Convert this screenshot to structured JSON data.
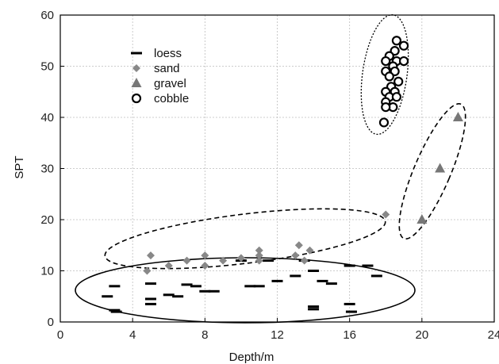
{
  "chart_data": {
    "type": "scatter",
    "title": "",
    "xlabel": "Depth/m",
    "ylabel": "SPT",
    "xlim": [
      0,
      24
    ],
    "ylim": [
      0,
      60
    ],
    "xticks": [
      "0",
      "4",
      "8",
      "12",
      "16",
      "20",
      "24"
    ],
    "yticks": [
      "0",
      "10",
      "20",
      "30",
      "40",
      "50",
      "60"
    ],
    "grid": true,
    "legend": "top-left",
    "series": [
      {
        "name": "loess",
        "marker": "dash",
        "color": "#000000",
        "points": [
          [
            2.6,
            5
          ],
          [
            3.0,
            7
          ],
          [
            3.0,
            2.3
          ],
          [
            3.1,
            2
          ],
          [
            5.0,
            7.5
          ],
          [
            5.0,
            4.5
          ],
          [
            5.0,
            3.5
          ],
          [
            6.0,
            5.3
          ],
          [
            6.5,
            5
          ],
          [
            7.0,
            7.3
          ],
          [
            7.5,
            7
          ],
          [
            8.0,
            6
          ],
          [
            8.5,
            6
          ],
          [
            10.0,
            12
          ],
          [
            10.5,
            7
          ],
          [
            11.0,
            7
          ],
          [
            11.5,
            12
          ],
          [
            12.0,
            8
          ],
          [
            13.0,
            9
          ],
          [
            13.5,
            12
          ],
          [
            14.0,
            10
          ],
          [
            14.0,
            3
          ],
          [
            14.0,
            2.5
          ],
          [
            14.5,
            8
          ],
          [
            15.0,
            7.5
          ],
          [
            16.0,
            11
          ],
          [
            16.0,
            3.5
          ],
          [
            16.1,
            2
          ],
          [
            17.0,
            11
          ],
          [
            17.5,
            9
          ]
        ]
      },
      {
        "name": "sand",
        "marker": "diamond",
        "color": "#888888",
        "points": [
          [
            4.8,
            10
          ],
          [
            5.0,
            13
          ],
          [
            6.0,
            11
          ],
          [
            7.0,
            12
          ],
          [
            8.0,
            13
          ],
          [
            8.0,
            11
          ],
          [
            9.0,
            12
          ],
          [
            10.0,
            12.5
          ],
          [
            11.0,
            14
          ],
          [
            11.0,
            13
          ],
          [
            11.0,
            12
          ],
          [
            13.0,
            13
          ],
          [
            13.2,
            15
          ],
          [
            13.5,
            12
          ],
          [
            13.8,
            14
          ],
          [
            18.0,
            21
          ]
        ]
      },
      {
        "name": "gravel",
        "marker": "triangle",
        "color": "#777777",
        "points": [
          [
            20,
            20
          ],
          [
            21,
            30
          ],
          [
            22,
            40
          ]
        ]
      },
      {
        "name": "cobble",
        "marker": "circle",
        "color": "#000000",
        "points": [
          [
            18.6,
            55
          ],
          [
            19.0,
            54
          ],
          [
            18.5,
            53
          ],
          [
            18.2,
            52
          ],
          [
            18.0,
            51
          ],
          [
            18.6,
            51
          ],
          [
            19.0,
            51
          ],
          [
            18.4,
            50
          ],
          [
            18.0,
            49
          ],
          [
            18.5,
            49
          ],
          [
            18.2,
            48
          ],
          [
            18.7,
            47
          ],
          [
            18.3,
            46
          ],
          [
            18.5,
            45
          ],
          [
            18.0,
            45
          ],
          [
            18.2,
            44
          ],
          [
            18.6,
            44
          ],
          [
            18.0,
            43
          ],
          [
            18.4,
            42
          ],
          [
            18.0,
            42
          ],
          [
            17.9,
            39
          ]
        ]
      }
    ]
  }
}
